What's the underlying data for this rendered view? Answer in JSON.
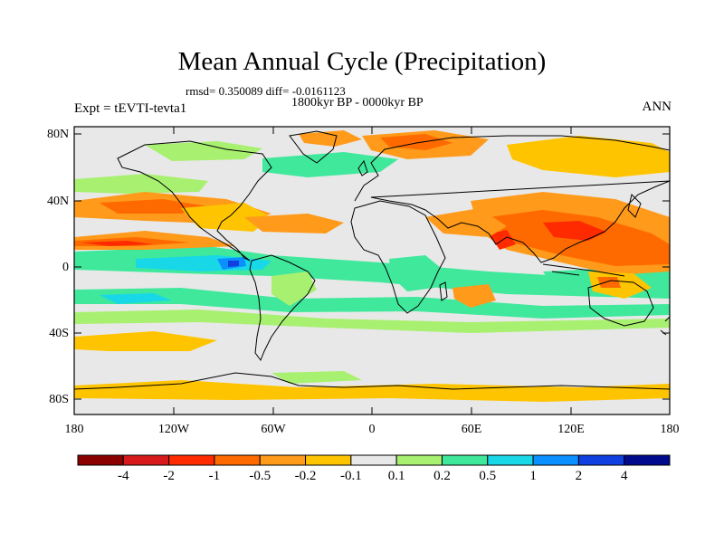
{
  "title": "Mean Annual Cycle (Precipitation)",
  "stats": "rmsd= 0.350089 diff= -0.0161123",
  "period": "1800kyr BP - 0000kyr BP",
  "experiment": "Expt = tEVTI-tevta1",
  "season": "ANN",
  "lat_labels": [
    "80N",
    "40N",
    "0",
    "40S",
    "80S"
  ],
  "lon_labels": [
    "180",
    "120W",
    "60W",
    "0",
    "60E",
    "120E",
    "180"
  ],
  "colorbar": {
    "labels": [
      "-4",
      "-2",
      "-1",
      "-0.5",
      "-0.2",
      "-0.1",
      "0.1",
      "0.2",
      "0.5",
      "1",
      "2",
      "4"
    ],
    "colors": [
      "#8b0000",
      "#d7191c",
      "#ff2a00",
      "#ff6a00",
      "#ff9a1a",
      "#ffc400",
      "#e8e8e8",
      "#a8f070",
      "#40e89c",
      "#18d8e8",
      "#0a90ff",
      "#1040e0",
      "#000a8c"
    ]
  }
}
